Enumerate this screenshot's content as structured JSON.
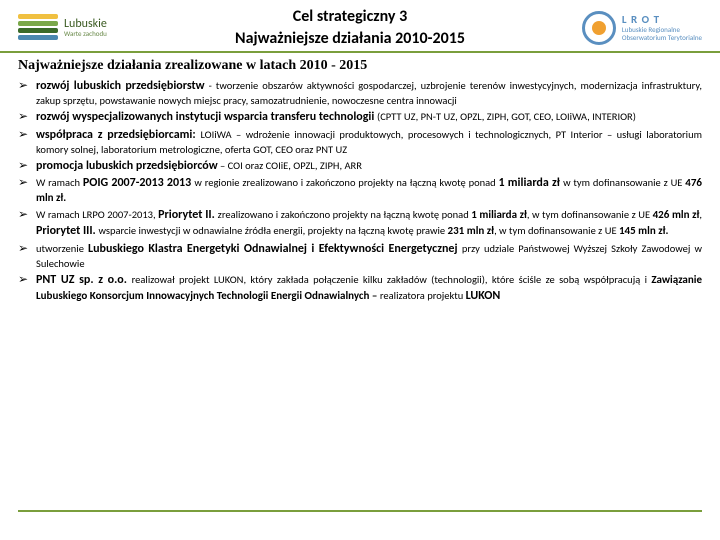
{
  "header": {
    "logoLeft": {
      "line1": "Lubuskie",
      "line2": "Warte zachodu"
    },
    "title1": "Cel strategiczny 3",
    "title2": "Najważniejsze działania 2010-2015",
    "logoRight": {
      "r1": "L R O T",
      "r2": "Lubuskie Regionalne",
      "r3": "Obserwatorium Terytorialne"
    }
  },
  "sectionTitle": "Najważniejsze działania zrealizowane w latach 2010 - 2015",
  "bulletChar": "➢",
  "items": {
    "i1a": "rozwój lubuskich przedsiębiorstw",
    "i1b": " - tworzenie obszarów aktywności gospodarczej, uzbrojenie terenów inwestycyjnych, modernizacja infrastruktury, zakup sprzętu, powstawanie nowych miejsc pracy, samozatrudnienie, nowoczesne centra innowacji",
    "i2a": "rozwój wyspecjalizowanych instytucji wsparcia transferu technologii ",
    "i2b": "(CPTT UZ, PN-T UZ, OPZL, ZIPH, GOT, CEO, LOIiWA, INTERIOR)",
    "i3a": "współpraca z przedsiębiorcami: ",
    "i3b": "LOIiWA – wdrożenie innowacji produktowych, procesowych i technologicznych, PT Interior – usługi laboratorium komory solnej, laboratorium metrologiczne, oferta GOT, CEO oraz PNT UZ",
    "i4a": "promocja lubuskich przedsiębiorców",
    "i4b": " – COI oraz COIiE, OPZL, ZIPH, ARR",
    "i5a": "W ramach ",
    "i5b": "POIG 2007-2013 2013 ",
    "i5c": "w regionie zrealizowano i zakończono projekty na łączną kwotę ponad ",
    "i5d": "1 miliarda zł ",
    "i5e": "w tym dofinansowanie z UE ",
    "i5f": "476 mln zł.",
    "i6a": "W ramach LRPO 2007-2013, ",
    "i6b": "Priorytet II. ",
    "i6c": "zrealizowano i zakończono projekty na łączną kwotę ponad ",
    "i6d": "1 miliarda zł",
    "i6e": ", w tym dofinansowanie z UE ",
    "i6f": "426 mln zł",
    "i6g": ", ",
    "i6h": "Priorytet III. ",
    "i6i": "wsparcie inwestycji w odnawialne źródła energii, projekty na łączną kwotę prawie ",
    "i6j": "231 mln zł",
    "i6k": ", w tym dofinansowanie z UE ",
    "i6l": "145 mln zł.",
    "i7a": "utworzenie ",
    "i7b": "Lubuskiego Klastra Energetyki Odnawialnej i Efektywności Energetycznej ",
    "i7c": "przy udziale Państwowej Wyższej Szkoły Zawodowej w Sulechowie",
    "i8a": "PNT UZ sp. z o.o. ",
    "i8b": "realizował projekt LUKON, który zakłada połączenie kilku zakładów (technologii), które ściśle ze sobą współpracują i ",
    "i8c": "Zawiązanie Lubuskiego Konsorcjum Innowacyjnych Technologii Energii Odnawialnych – ",
    "i8d": "realizatora projektu ",
    "i8e": "LUKON"
  }
}
